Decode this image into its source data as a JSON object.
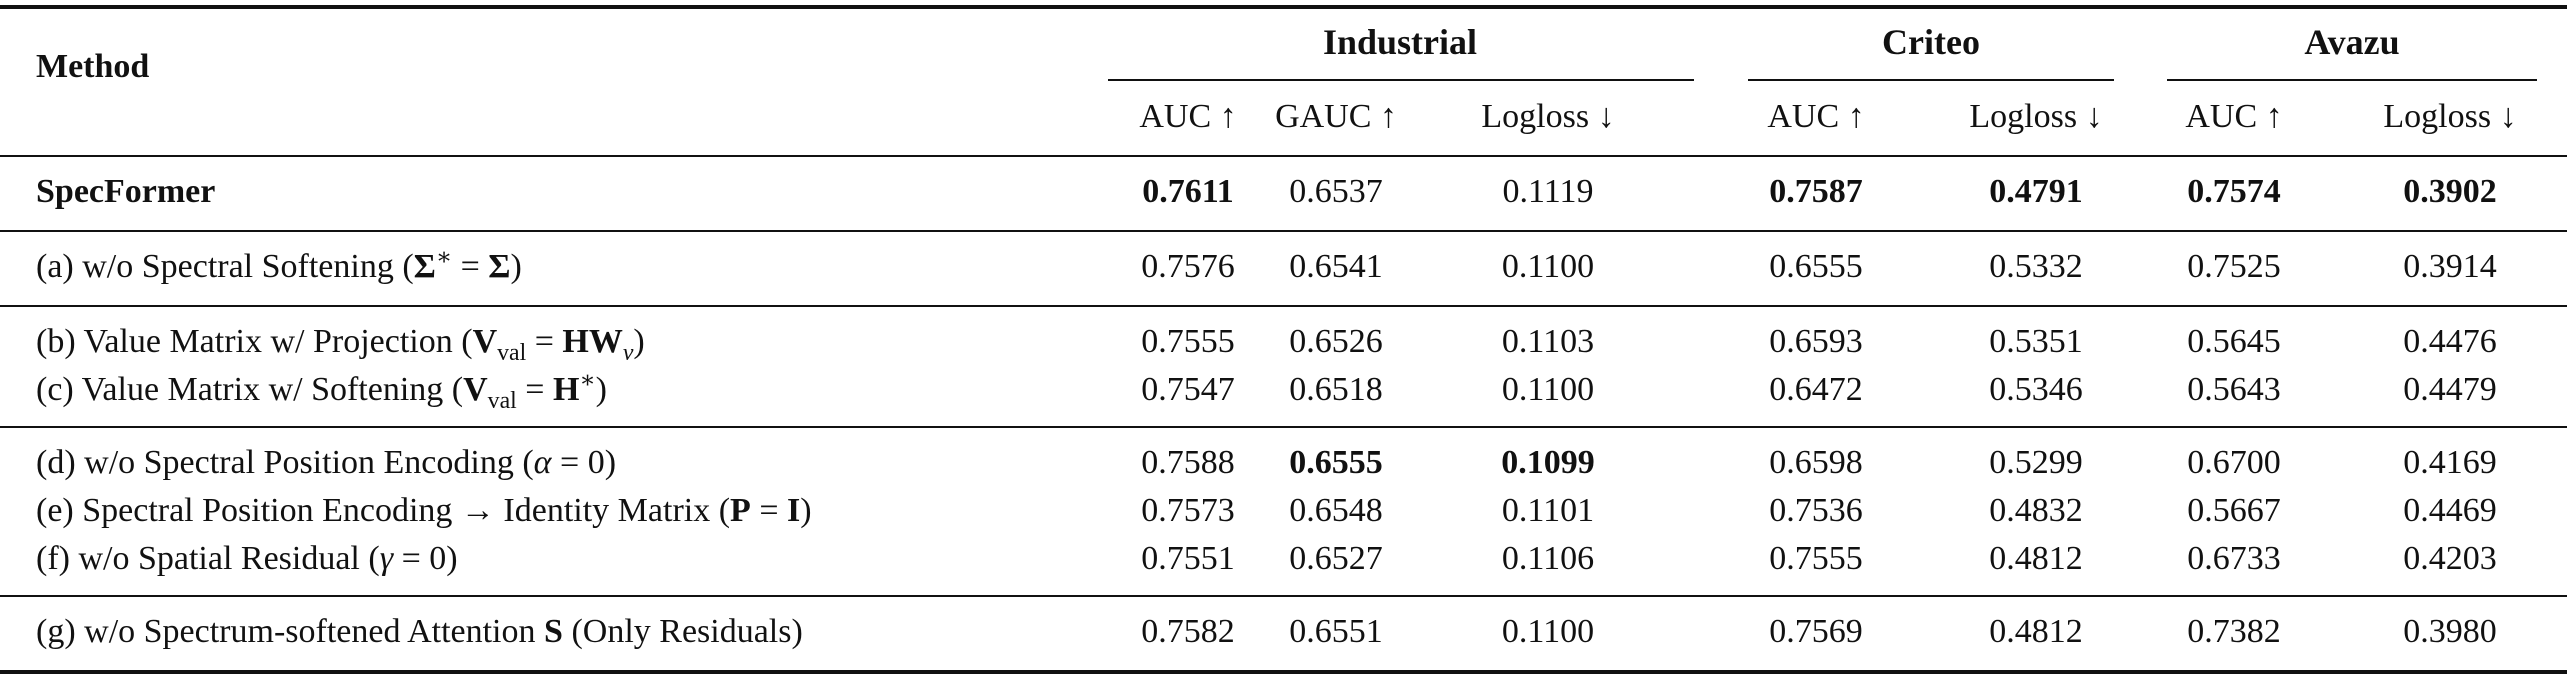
{
  "header": {
    "method": "Method",
    "groups": [
      "Industrial",
      "Criteo",
      "Avazu"
    ],
    "metrics": [
      "AUC ↑",
      "GAUC ↑",
      "Logloss ↓",
      "AUC ↑",
      "Logloss ↓",
      "AUC ↑",
      "Logloss ↓"
    ]
  },
  "rows": [
    {
      "label": "SpecFormer",
      "values": [
        "0.7611",
        "0.6537",
        "0.1119",
        "0.7587",
        "0.4791",
        "0.7574",
        "0.3902"
      ]
    },
    {
      "label": "(a) w/o Spectral Softening (Σ* = Σ)",
      "values": [
        "0.7576",
        "0.6541",
        "0.1100",
        "0.6555",
        "0.5332",
        "0.7525",
        "0.3914"
      ]
    },
    {
      "label": "(b) Value Matrix w/ Projection (Vval = HWv)",
      "values": [
        "0.7555",
        "0.6526",
        "0.1103",
        "0.6593",
        "0.5351",
        "0.5645",
        "0.4476"
      ]
    },
    {
      "label": "(c) Value Matrix w/ Softening (Vval = H*)",
      "values": [
        "0.7547",
        "0.6518",
        "0.1100",
        "0.6472",
        "0.5346",
        "0.5643",
        "0.4479"
      ]
    },
    {
      "label": "(d) w/o Spectral Position Encoding (α = 0)",
      "values": [
        "0.7588",
        "0.6555",
        "0.1099",
        "0.6598",
        "0.5299",
        "0.6700",
        "0.4169"
      ]
    },
    {
      "label": "(e) Spectral Position Encoding → Identity Matrix (P = I)",
      "values": [
        "0.7573",
        "0.6548",
        "0.1101",
        "0.7536",
        "0.4832",
        "0.5667",
        "0.4469"
      ]
    },
    {
      "label": "(f) w/o Spatial Residual (γ = 0)",
      "values": [
        "0.7551",
        "0.6527",
        "0.1106",
        "0.7555",
        "0.4812",
        "0.6733",
        "0.4203"
      ]
    },
    {
      "label": "(g) w/o Spectrum-softened Attention S (Only Residuals)",
      "values": [
        "0.7582",
        "0.6551",
        "0.1100",
        "0.7569",
        "0.4812",
        "0.7382",
        "0.3980"
      ]
    }
  ],
  "bold": {
    "rows.0.values.0": true,
    "rows.0.values.3": true,
    "rows.0.values.4": true,
    "rows.0.values.5": true,
    "rows.0.values.6": true,
    "rows.4.values.1": true,
    "rows.4.values.2": true
  }
}
